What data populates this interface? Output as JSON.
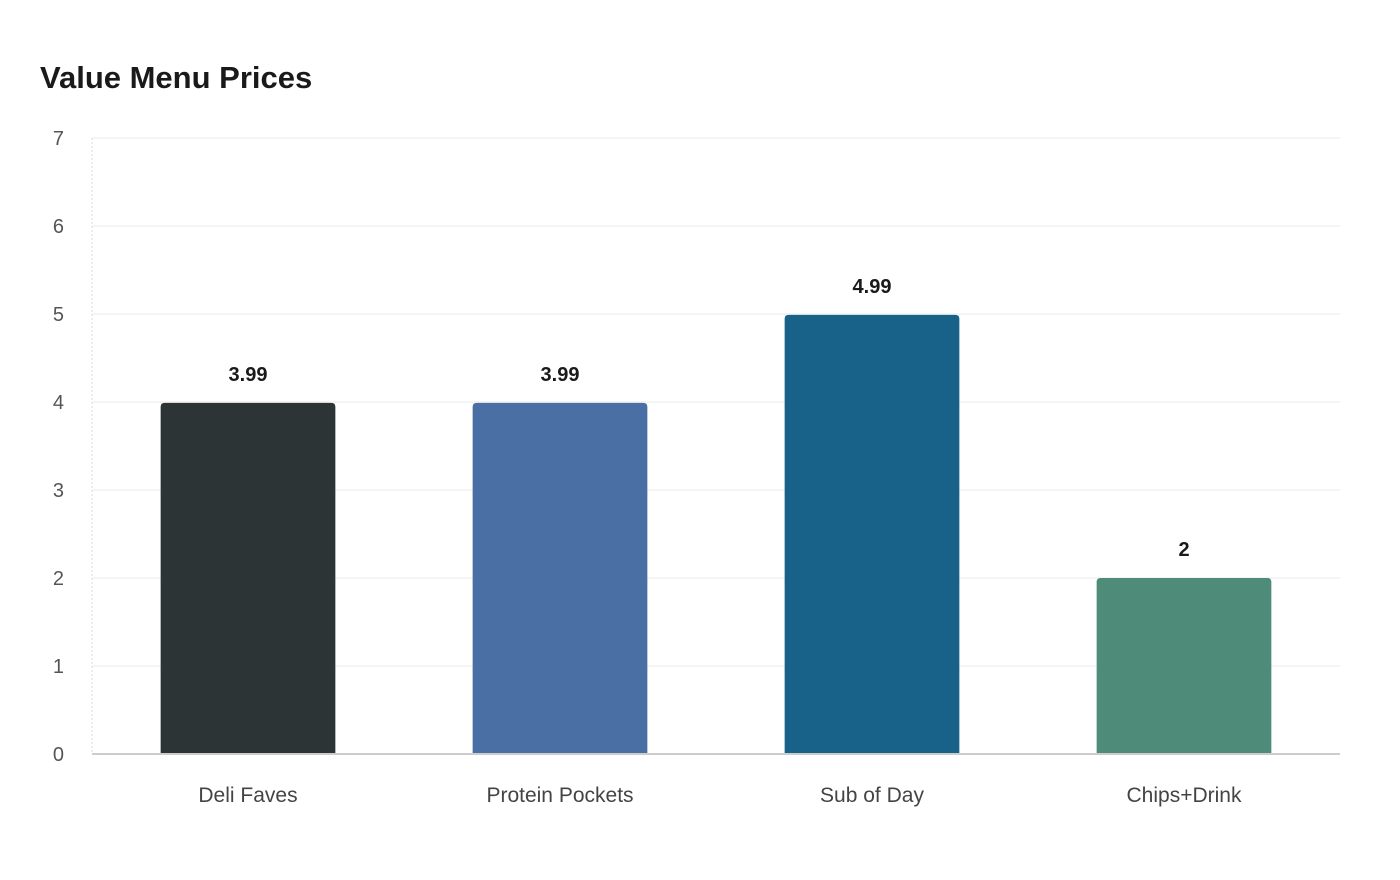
{
  "chart_data": {
    "type": "bar",
    "title": "Value Menu Prices",
    "categories": [
      "Deli Faves",
      "Protein Pockets",
      "Sub of Day",
      "Chips+Drink"
    ],
    "values": [
      3.99,
      3.99,
      4.99,
      2
    ],
    "value_labels": [
      "3.99",
      "3.99",
      "4.99",
      "2"
    ],
    "colors": [
      "#2d3436",
      "#4a6fa5",
      "#186188",
      "#4e8c79"
    ],
    "ylim": [
      0,
      7
    ],
    "yticks": [
      0,
      1,
      2,
      3,
      4,
      5,
      6,
      7
    ],
    "grid": true,
    "legend": "none"
  }
}
